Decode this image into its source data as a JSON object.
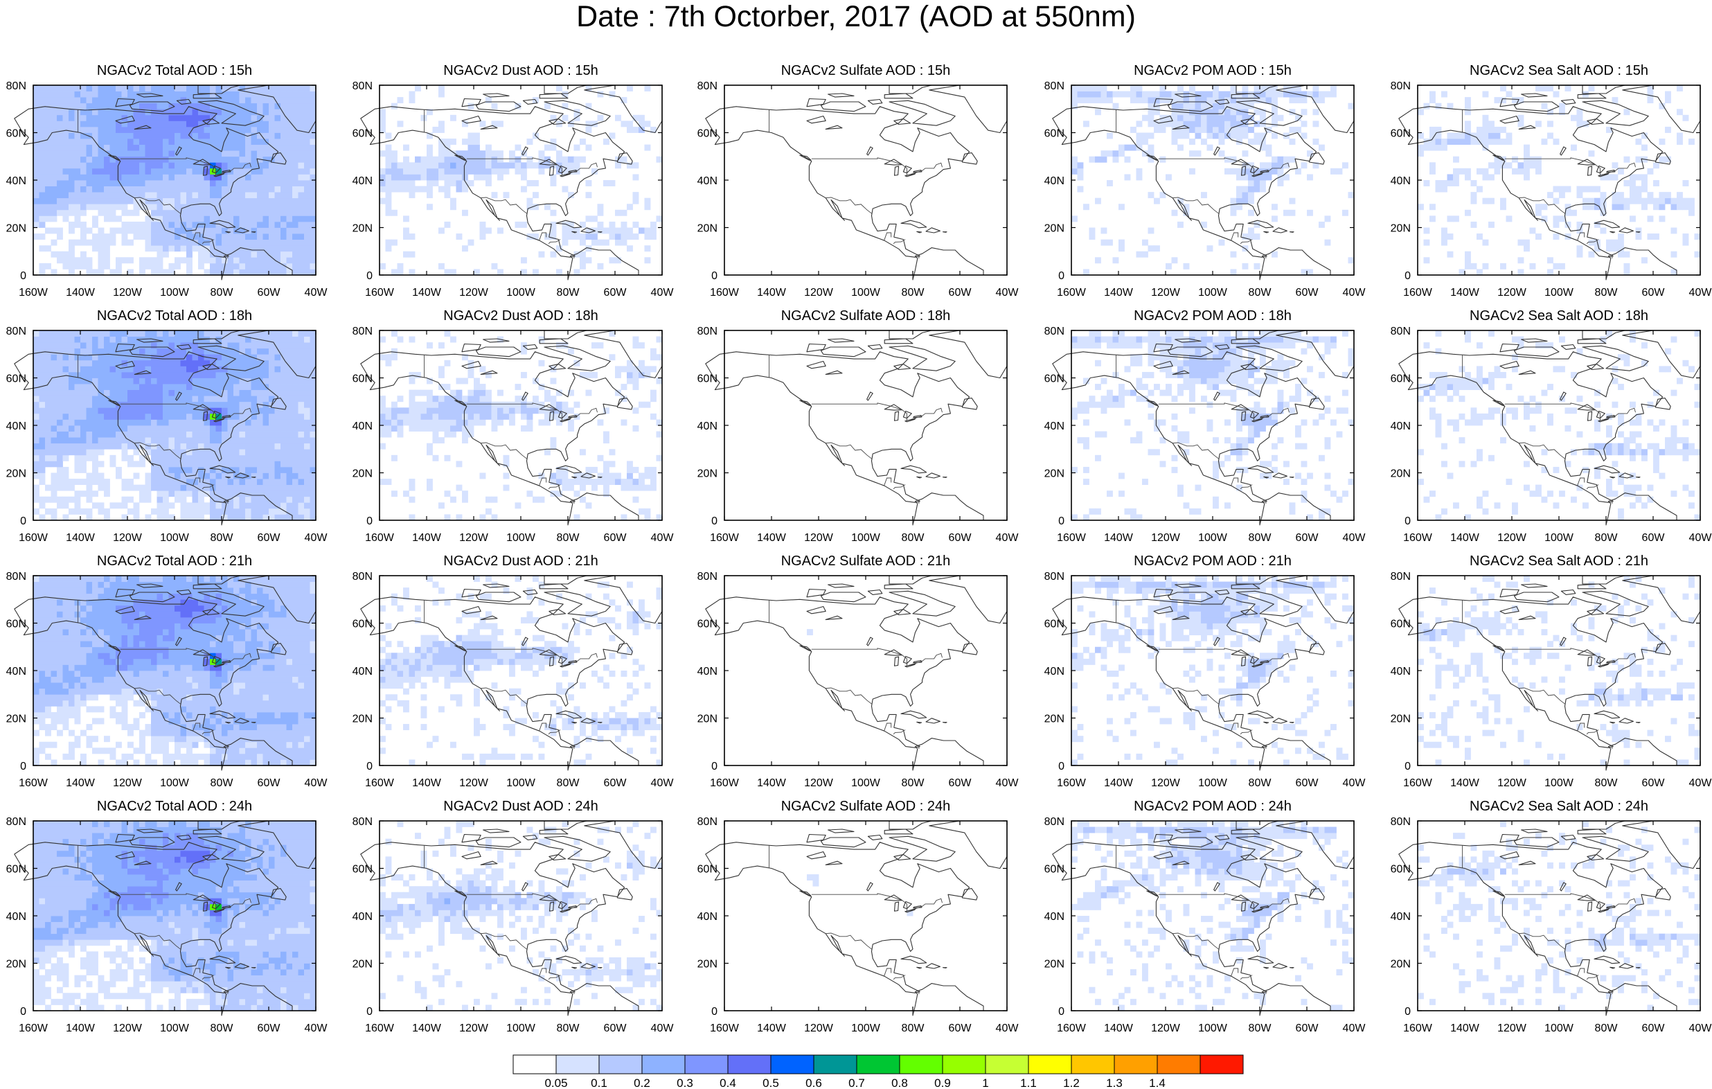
{
  "title": "Date : 7th Octorber, 2017 (AOD at 550nm)",
  "panels": [
    [
      {
        "title": "NGACv2 Total AOD : 15h",
        "species": "total"
      },
      {
        "title": "NGACv2 Dust AOD : 15h",
        "species": "dust"
      },
      {
        "title": "NGACv2 Sulfate AOD : 15h",
        "species": "sulfate"
      },
      {
        "title": "NGACv2 POM AOD : 15h",
        "species": "pom"
      },
      {
        "title": "NGACv2 Sea Salt AOD : 15h",
        "species": "seasalt"
      }
    ],
    [
      {
        "title": "NGACv2 Total AOD : 18h",
        "species": "total"
      },
      {
        "title": "NGACv2 Dust AOD : 18h",
        "species": "dust"
      },
      {
        "title": "NGACv2 Sulfate AOD : 18h",
        "species": "sulfate"
      },
      {
        "title": "NGACv2 POM AOD : 18h",
        "species": "pom"
      },
      {
        "title": "NGACv2 Sea Salt AOD : 18h",
        "species": "seasalt"
      }
    ],
    [
      {
        "title": "NGACv2 Total AOD : 21h",
        "species": "total"
      },
      {
        "title": "NGACv2 Dust AOD : 21h",
        "species": "dust"
      },
      {
        "title": "NGACv2 Sulfate AOD : 21h",
        "species": "sulfate"
      },
      {
        "title": "NGACv2 POM AOD : 21h",
        "species": "pom"
      },
      {
        "title": "NGACv2 Sea Salt AOD : 21h",
        "species": "seasalt"
      }
    ],
    [
      {
        "title": "NGACv2 Total AOD : 24h",
        "species": "total"
      },
      {
        "title": "NGACv2 Dust AOD : 24h",
        "species": "dust"
      },
      {
        "title": "NGACv2 Sulfate AOD : 24h",
        "species": "sulfate"
      },
      {
        "title": "NGACv2 POM AOD : 24h",
        "species": "pom"
      },
      {
        "title": "NGACv2 Sea Salt  AOD : 24h",
        "species": "seasalt"
      }
    ]
  ],
  "lon_labels": [
    "160W",
    "140W",
    "120W",
    "100W",
    "80W",
    "60W",
    "40W"
  ],
  "lat_labels": [
    "0",
    "20N",
    "40N",
    "60N",
    "80N"
  ],
  "colorbar": {
    "labels": [
      "0.05",
      "0.1",
      "0.2",
      "0.3",
      "0.4",
      "0.5",
      "0.6",
      "0.7",
      "0.8",
      "0.9",
      "1",
      "1.1",
      "1.2",
      "1.3",
      "1.4"
    ],
    "colors": [
      "#ffffff",
      "#d6e2ff",
      "#b5c9ff",
      "#8eb2ff",
      "#7f96ff",
      "#6370f8",
      "#0063ff",
      "#009696",
      "#00c633",
      "#63ff00",
      "#96ff00",
      "#c6ff33",
      "#ffff00",
      "#ffc600",
      "#ffa000",
      "#ff7c00",
      "#ff1900"
    ]
  }
}
